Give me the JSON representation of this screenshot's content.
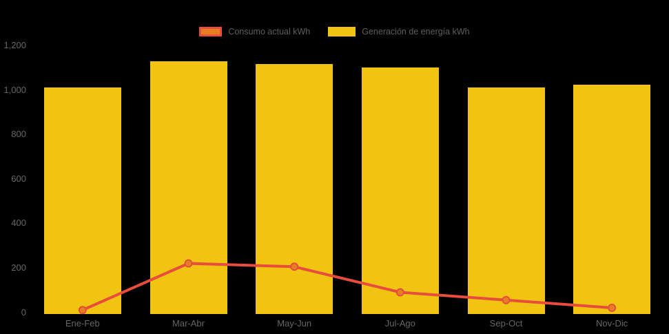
{
  "chart_data": {
    "type": "combo",
    "categories": [
      "Ene-Feb",
      "Mar-Abr",
      "May-Jun",
      "Jul-Ago",
      "Sep-Oct",
      "Nov-Dic"
    ],
    "series": [
      {
        "name": "Generación de energía kWh",
        "type": "bar",
        "color": "#F0C411",
        "values": [
          1010,
          1130,
          1115,
          1100,
          1010,
          1025
        ]
      },
      {
        "name": "Consumo actual kWh",
        "type": "line",
        "color": "#E74C3C",
        "marker_fill": "#E67E22",
        "marker_stroke": "#E74C3C",
        "values": [
          10,
          220,
          205,
          90,
          55,
          20
        ]
      }
    ],
    "title": "",
    "xlabel": "",
    "ylabel": "",
    "ylim": [
      0,
      1200
    ],
    "y_ticks": [
      0,
      200,
      400,
      600,
      800,
      1000,
      1200
    ],
    "y_tick_labels": [
      "0",
      "200",
      "400",
      "600",
      "800",
      "1,000",
      "1,200"
    ],
    "grid": false,
    "legend_position": "top-center",
    "background": "#000000",
    "axis_label_color": "#666666"
  },
  "legend": {
    "items": [
      {
        "label": "Consumo actual kWh",
        "swatch_fill": "#E67E22",
        "swatch_border": "#E74C3C"
      },
      {
        "label": "Generación de energía kWh",
        "swatch_fill": "#F0C411"
      }
    ]
  }
}
